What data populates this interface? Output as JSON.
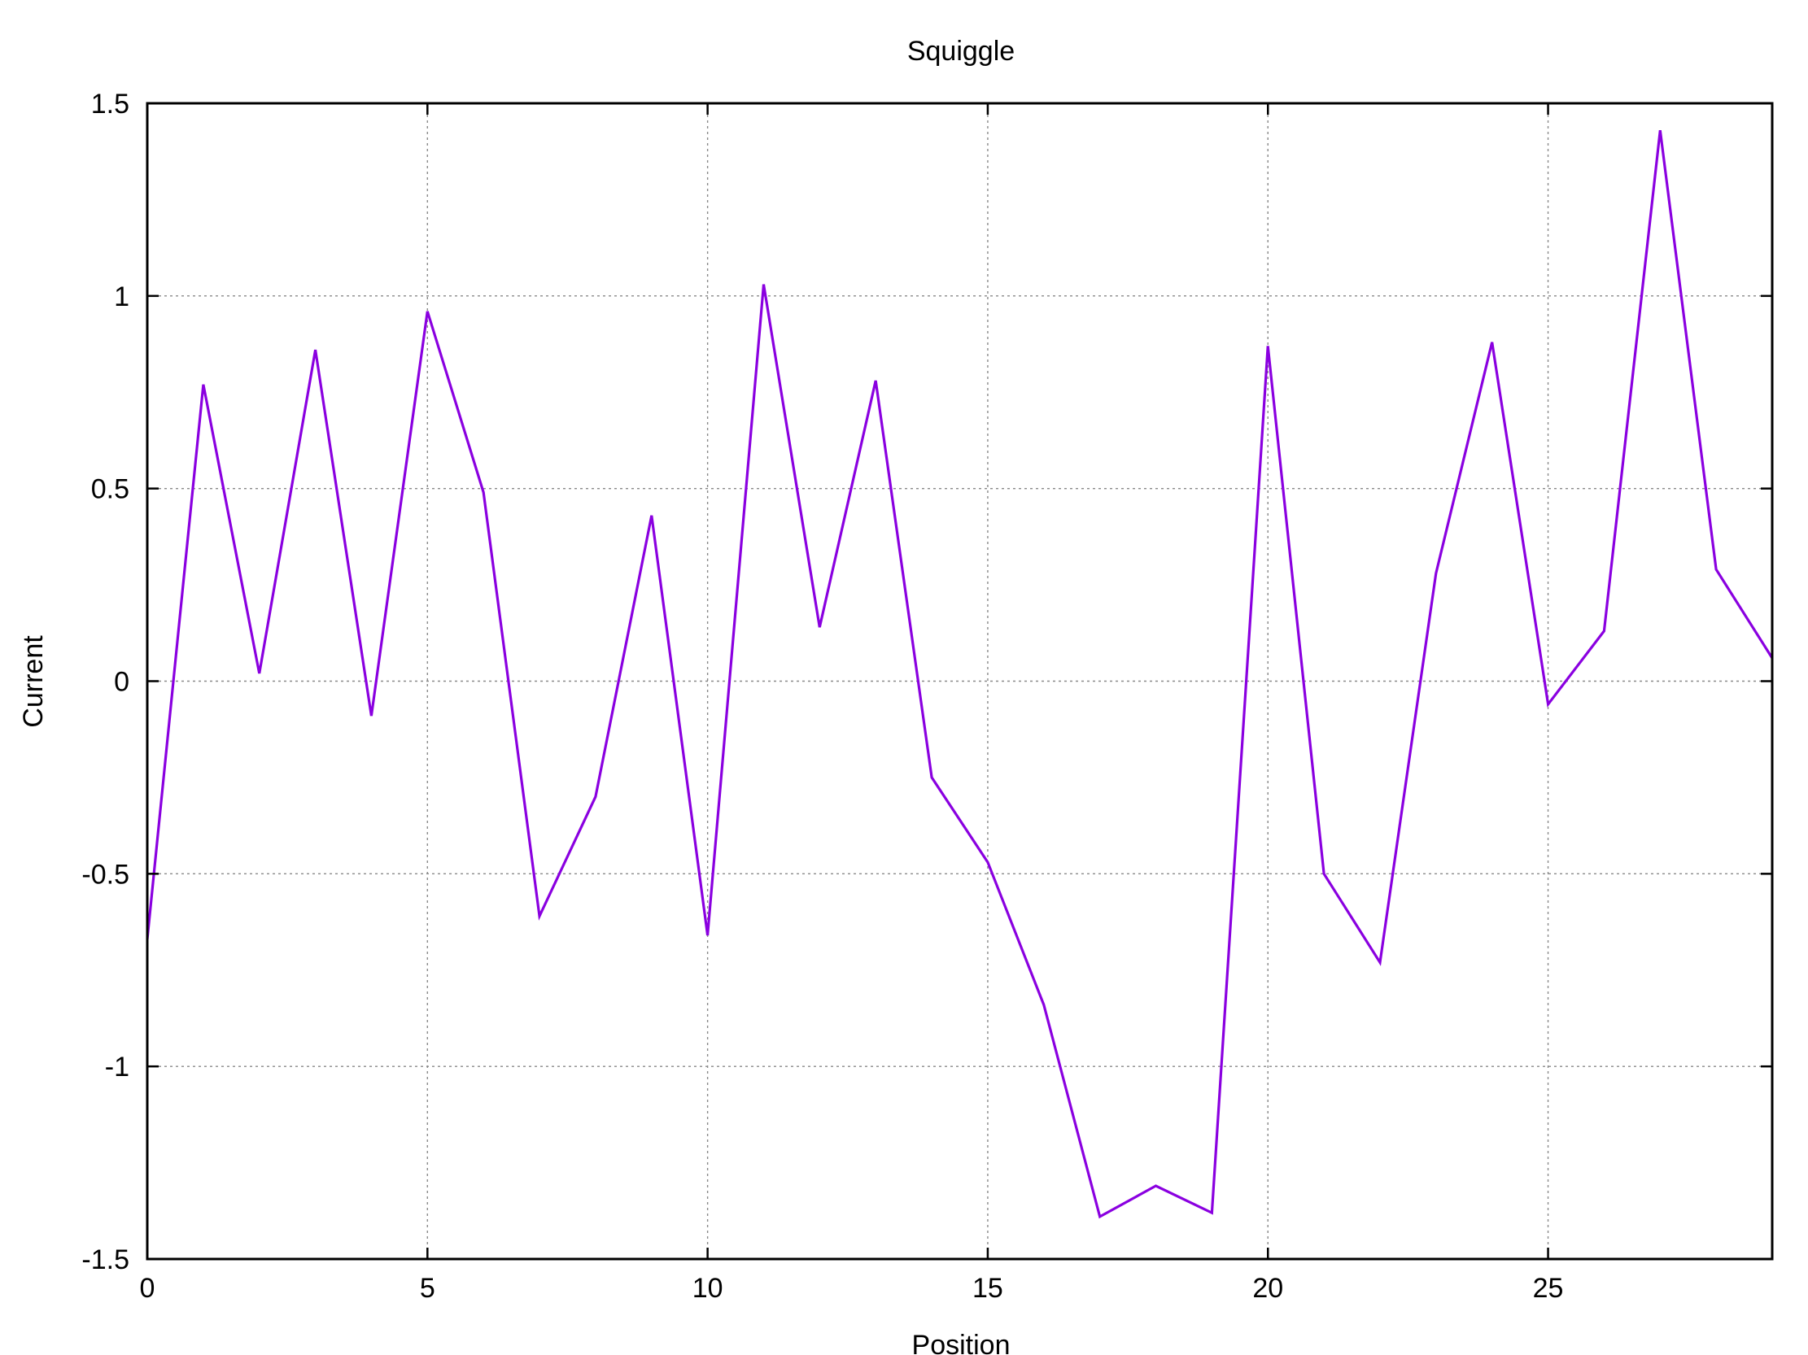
{
  "chart_data": {
    "type": "line",
    "title": "Squiggle",
    "xlabel": "Position",
    "ylabel": "Current",
    "xlim": [
      0,
      29
    ],
    "ylim": [
      -1.5,
      1.5
    ],
    "grid": true,
    "x_ticks": [
      {
        "value": 0,
        "label": "0"
      },
      {
        "value": 5,
        "label": "5"
      },
      {
        "value": 10,
        "label": "10"
      },
      {
        "value": 15,
        "label": "15"
      },
      {
        "value": 20,
        "label": "20"
      },
      {
        "value": 25,
        "label": "25"
      }
    ],
    "y_ticks": [
      {
        "value": -1.5,
        "label": "-1.5"
      },
      {
        "value": -1,
        "label": "-1"
      },
      {
        "value": -0.5,
        "label": "-0.5"
      },
      {
        "value": 0,
        "label": "0"
      },
      {
        "value": 0.5,
        "label": "0.5"
      },
      {
        "value": 1,
        "label": "1"
      },
      {
        "value": 1.5,
        "label": "1.5"
      }
    ],
    "series": [
      {
        "color": "#8a00e0",
        "x": [
          0,
          1,
          2,
          3,
          4,
          5,
          6,
          7,
          8,
          9,
          10,
          11,
          12,
          13,
          14,
          15,
          16,
          17,
          18,
          19,
          20,
          21,
          22,
          23,
          24,
          25,
          26,
          27,
          28,
          29
        ],
        "y": [
          -0.67,
          0.77,
          0.02,
          0.86,
          -0.09,
          0.96,
          0.49,
          -0.61,
          -0.3,
          0.43,
          -0.66,
          1.03,
          0.14,
          0.78,
          -0.25,
          -0.47,
          -0.84,
          -1.39,
          -1.31,
          -1.38,
          0.87,
          -0.5,
          -0.73,
          0.28,
          0.88,
          -0.06,
          0.13,
          1.43,
          0.29,
          0.06
        ]
      }
    ]
  }
}
